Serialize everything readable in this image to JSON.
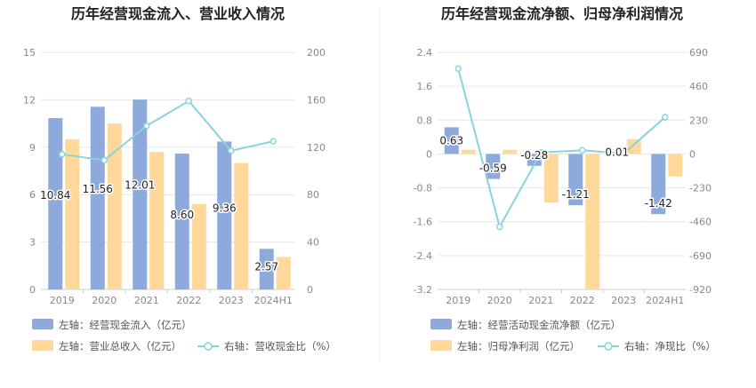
{
  "colors": {
    "bar_primary": "#8eaadc",
    "bar_secondary": "#ffd89a",
    "line": "#88d4dc",
    "grid": "#e6e6e6",
    "divider": "#eeeeee"
  },
  "chart_data": [
    {
      "type": "bar",
      "title": "历年经营现金流入、营业收入情况",
      "categories": [
        "2019",
        "2020",
        "2021",
        "2022",
        "2023",
        "2024H1"
      ],
      "left_axis": {
        "ylim": [
          0,
          15
        ],
        "ticks": [
          "0",
          "3",
          "6",
          "9",
          "12",
          "15"
        ]
      },
      "right_axis": {
        "ylim": [
          0,
          200
        ],
        "ticks": [
          "0",
          "40",
          "80",
          "120",
          "160",
          "200"
        ]
      },
      "series": [
        {
          "name": "左轴：经营现金流入（亿元）",
          "axis": "left",
          "type": "bar",
          "values": [
            10.84,
            11.56,
            12.01,
            8.6,
            9.36,
            2.57
          ],
          "labels": [
            "10.84",
            "11.56",
            "12.01",
            "8.60",
            "9.36",
            "2.57"
          ]
        },
        {
          "name": "左轴：营业总收入（亿元）",
          "axis": "left",
          "type": "bar",
          "values": [
            9.5,
            10.5,
            8.7,
            5.4,
            8.0,
            2.05
          ]
        },
        {
          "name": "右轴：营收现金比（%）",
          "axis": "right",
          "type": "line",
          "values": [
            114,
            109,
            138,
            159,
            117,
            125
          ]
        }
      ]
    },
    {
      "type": "bar",
      "title": "历年经营现金流净额、归母净利润情况",
      "categories": [
        "2019",
        "2020",
        "2021",
        "2022",
        "2023",
        "2024H1"
      ],
      "left_axis": {
        "ylim": [
          -3.2,
          2.4
        ],
        "ticks": [
          "-3.2",
          "-2.4",
          "-1.6",
          "-0.8",
          "0",
          "0.8",
          "1.6",
          "2.4"
        ]
      },
      "right_axis": {
        "ylim": [
          -920,
          690
        ],
        "ticks": [
          "-920",
          "-690",
          "-460",
          "-230",
          "0",
          "230",
          "460",
          "690"
        ]
      },
      "series": [
        {
          "name": "左轴：经营活动现金流净额（亿元）",
          "axis": "left",
          "type": "bar",
          "values": [
            0.63,
            -0.59,
            -0.28,
            -1.21,
            0.01,
            -1.42
          ],
          "labels": [
            "0.63",
            "-0.59",
            "-0.28",
            "-1.21",
            "0.01",
            "-1.42"
          ]
        },
        {
          "name": "左轴：归母净利润（亿元）",
          "axis": "left",
          "type": "bar",
          "values": [
            0.1,
            0.1,
            -1.15,
            -3.2,
            0.35,
            -0.53
          ]
        },
        {
          "name": "右轴：净现比（%）",
          "axis": "right",
          "type": "line",
          "values": [
            580,
            -495,
            10,
            25,
            3,
            250
          ]
        }
      ]
    }
  ]
}
